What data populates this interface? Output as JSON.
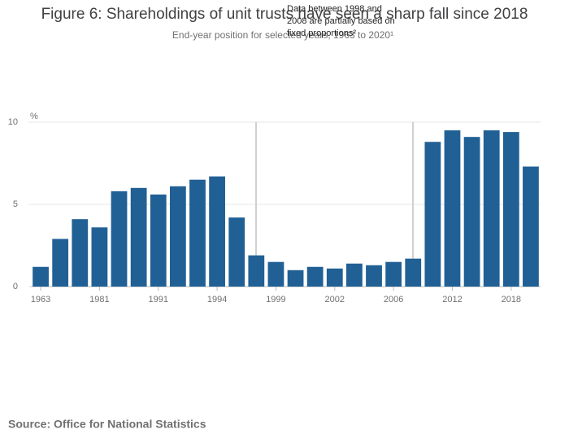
{
  "chart_data": {
    "type": "bar",
    "title": "Figure 6: Shareholdings of unit trusts have seen a sharp fall since 2018",
    "subtitle": "End-year position for selected years, 1963 to 2020¹",
    "y_axis_label": "%",
    "annotation": [
      "Data between 1998 and",
      "2008 are partially based on",
      "fixed proportions²"
    ],
    "source": "Source: Office for National Statistics",
    "categories": [
      "1963",
      null,
      null,
      "1981",
      null,
      null,
      "1991",
      null,
      null,
      "1994",
      null,
      null,
      "1999",
      null,
      null,
      "2002",
      null,
      null,
      "2006",
      null,
      null,
      "2012",
      null,
      null,
      "2018",
      null
    ],
    "values": [
      1.2,
      2.9,
      4.1,
      3.6,
      5.8,
      6.0,
      5.6,
      6.1,
      6.5,
      6.7,
      4.2,
      1.9,
      1.5,
      1.0,
      1.2,
      1.1,
      1.4,
      1.3,
      1.5,
      1.7,
      8.8,
      9.5,
      9.1,
      9.5,
      9.4,
      7.3
    ],
    "color": "#206095",
    "ylim": [
      0,
      10
    ],
    "yticks": [
      0,
      5,
      10
    ],
    "grid": true
  }
}
